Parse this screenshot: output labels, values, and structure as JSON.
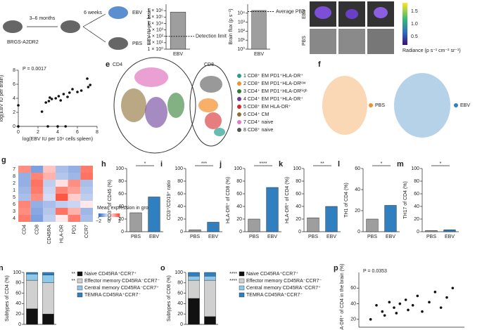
{
  "diagram_a": {
    "mouse": "BRGS-A2DR2",
    "age": "3–6 months",
    "wait": "6 weeks",
    "ebv": "EBV",
    "pbs": "PBS"
  },
  "images_panel": {
    "ebv": "EBV",
    "pbs": "PBS",
    "colorbar_ticks": [
      "1.5",
      "1.0",
      "0.5"
    ],
    "colorbar_title": "Radiance (p s⁻¹ cm⁻² sr⁻¹)"
  },
  "tsne_e": {
    "panel": "e",
    "cd4": "CD4",
    "cd8": "CD8",
    "legend": [
      {
        "name": "1 CD8⁺ EM PD1⁺HLA-DR⁺",
        "color": "#2a9d8f"
      },
      {
        "name": "2 CD8⁺ EM PD1⁺HLA-DRˡᵒʷ",
        "color": "#f28e2b"
      },
      {
        "name": "3 CD4⁺ EM PD1⁺HLA-DRʰⁱᵍʰ",
        "color": "#2e7d32"
      },
      {
        "name": "4 CD4⁺ EM PD1⁺HLA-DR⁺",
        "color": "#6a3d9a"
      },
      {
        "name": "5 CD8⁺ EM HLA-DR⁺",
        "color": "#d62728"
      },
      {
        "name": "6 CD4⁺ CM",
        "color": "#8c6d31"
      },
      {
        "name": "7 CD4⁺ naive",
        "color": "#e377c2"
      },
      {
        "name": "8 CD8⁺ naive",
        "color": "#555555"
      }
    ]
  },
  "tsne_f": {
    "panel": "f",
    "pbs": {
      "name": "PBS",
      "color": "#f28e2b"
    },
    "ebv": {
      "name": "EBV",
      "color": "#2f7fc1"
    }
  },
  "chart_data": [
    {
      "type": "bar",
      "log": true,
      "ylabel": "EBV IU per brain",
      "categories": [
        "EBV"
      ],
      "values": [
        600000
      ],
      "colors": [
        "#9e9e9e"
      ],
      "ylim": [
        1,
        10000000
      ],
      "yticks": [
        {
          "value": 1,
          "label": "1 × 10⁰"
        },
        {
          "value": 10,
          "label": "1 × 10¹"
        },
        {
          "value": 100,
          "label": "1 × 10²"
        },
        {
          "value": 1000,
          "label": "1 × 10³"
        },
        {
          "value": 10000,
          "label": "1 × 10⁴"
        },
        {
          "value": 100000,
          "label": "1 × 10⁵"
        },
        {
          "value": 1000000,
          "label": "1 × 10⁶"
        }
      ],
      "reference": {
        "value": 100,
        "label": "Detection limit"
      }
    },
    {
      "type": "bar",
      "log": true,
      "ylabel": "Brain flux (p s⁻¹)",
      "categories": [
        "EBV"
      ],
      "values": [
        20000
      ],
      "colors": [
        "#9e9e9e"
      ],
      "ylim": [
        1,
        100000
      ],
      "yticks": [
        {
          "value": 1,
          "label": "10⁰"
        },
        {
          "value": 10,
          "label": "10¹"
        },
        {
          "value": 100,
          "label": "10²"
        },
        {
          "value": 1000,
          "label": "10³"
        },
        {
          "value": 10000,
          "label": "10⁴"
        }
      ],
      "reference": {
        "value": 15000,
        "label": "Average PBS"
      }
    },
    {
      "type": "scatter",
      "panel": "d",
      "annotation": "P = 0.0017",
      "xlabel": "log(EBV IU per 10⁶ cells spleen)",
      "ylabel": "log(EBV IU per brain)",
      "x": [
        0,
        0,
        2.4,
        3,
        3.1,
        3.4,
        3.8,
        4,
        4.1,
        4.3,
        4.6,
        5,
        5.2,
        5.5,
        6,
        7,
        7.1,
        7.3,
        3.2,
        4.8,
        2.8,
        6.4
      ],
      "y": [
        3,
        0,
        2.1,
        0,
        3.6,
        3.9,
        4,
        0,
        4.3,
        3.7,
        4.6,
        4.2,
        4.8,
        5.3,
        4.9,
        6.8,
        5.6,
        5.9,
        4.1,
        0,
        3.4,
        5.1
      ],
      "color": "#111",
      "xlim": [
        0,
        8
      ],
      "xticks": [
        0,
        2,
        4,
        6,
        8
      ],
      "ylim": [
        0,
        8
      ],
      "yticks": [
        0,
        2,
        4,
        6,
        8
      ]
    },
    {
      "type": "heatmap",
      "panel": "g",
      "rows": [
        "7",
        "8",
        "2",
        "1",
        "5",
        "6",
        "3",
        "4"
      ],
      "columns": [
        "CD4",
        "CD8",
        "CD45RA",
        "HLA-DR",
        "PD1",
        "CCR7"
      ],
      "values": [
        [
          1.2,
          -1.2,
          0.6,
          -0.8,
          -1,
          1.4
        ],
        [
          -1,
          1.3,
          0.8,
          -0.7,
          -0.9,
          1.5
        ],
        [
          -1,
          1.5,
          -0.6,
          0.3,
          1.2,
          -0.8
        ],
        [
          -0.9,
          1.4,
          -0.5,
          1.3,
          1,
          -0.7
        ],
        [
          -0.8,
          1.2,
          -0.4,
          1.8,
          0.5,
          -0.6
        ],
        [
          1.3,
          -1,
          -0.8,
          -0.6,
          -0.5,
          0.2
        ],
        [
          1.2,
          -1.1,
          -0.7,
          1.5,
          0.8,
          -0.9
        ],
        [
          1.4,
          -1.2,
          -0.6,
          0.2,
          1.4,
          -0.8
        ]
      ],
      "vlim": [
        -2,
        2
      ],
      "colorbar_ticks": [
        {
          "value": -2,
          "label": "−2"
        },
        0,
        2
      ],
      "colorbar_title": "Mean expression in group"
    },
    {
      "type": "bar",
      "panel": "h",
      "ylabel": "CD3⁺ of CD45 (%)",
      "categories": [
        "PBS",
        "EBV"
      ],
      "values": [
        30,
        55
      ],
      "colors": [
        "#9e9e9e",
        "#2f7fc1"
      ],
      "ylim": [
        0,
        100
      ],
      "yticks": [
        0,
        20,
        40,
        60,
        80,
        100
      ],
      "significance": "*"
    },
    {
      "type": "bar",
      "panel": "i",
      "ylabel": "CD3⁺/CD19⁺ ratio",
      "categories": [
        "PBS",
        "EBV"
      ],
      "values": [
        3,
        15
      ],
      "colors": [
        "#9e9e9e",
        "#2f7fc1"
      ],
      "ylim": [
        0,
        100
      ],
      "yticks": [
        0,
        20,
        40,
        60,
        80,
        100
      ],
      "significance": "***"
    },
    {
      "type": "bar",
      "panel": "j",
      "ylabel": "HLA-DR⁺ of CD8 (%)",
      "categories": [
        "PBS",
        "EBV"
      ],
      "values": [
        20,
        70
      ],
      "colors": [
        "#9e9e9e",
        "#2f7fc1"
      ],
      "ylim": [
        0,
        100
      ],
      "yticks": [
        0,
        20,
        40,
        60,
        80,
        100
      ],
      "significance": "****"
    },
    {
      "type": "bar",
      "panel": "k",
      "ylabel": "HLA-DR⁺ of CD4 (%)",
      "categories": [
        "PBS",
        "EBV"
      ],
      "values": [
        22,
        40
      ],
      "colors": [
        "#9e9e9e",
        "#2f7fc1"
      ],
      "ylim": [
        0,
        100
      ],
      "yticks": [
        0,
        20,
        40,
        60,
        80,
        100
      ],
      "significance": "**"
    },
    {
      "type": "bar",
      "panel": "l",
      "ylabel": "TH1 of CD4 (%)",
      "categories": [
        "PBS",
        "EBV"
      ],
      "values": [
        12,
        25
      ],
      "colors": [
        "#9e9e9e",
        "#2f7fc1"
      ],
      "ylim": [
        0,
        60
      ],
      "yticks": [
        0,
        20,
        40,
        60
      ],
      "significance": "*"
    },
    {
      "type": "bar",
      "panel": "m",
      "ylabel": "TH17 of CD4 (%)",
      "categories": [
        "PBS",
        "EBV"
      ],
      "values": [
        2,
        3
      ],
      "colors": [
        "#9e9e9e",
        "#2f7fc1"
      ],
      "ylim": [
        0,
        100
      ],
      "yticks": [
        0,
        20,
        40,
        60,
        80,
        100
      ],
      "significance": "*"
    },
    {
      "type": "stacked_bar",
      "panel": "n",
      "ylabel": "Subtypes of CD4 (%)",
      "categories": [
        null,
        null
      ],
      "ylim": [
        0,
        100
      ],
      "yticks": [
        0,
        20,
        40,
        60,
        80,
        100
      ],
      "markers": [
        "**",
        "**"
      ],
      "series": [
        {
          "name": "Naive CD45RA⁺CCR7⁺",
          "color": "#111111",
          "values": [
            30,
            20
          ]
        },
        {
          "name": "Effector memory CD45RA⁻CCR7⁻",
          "color": "#d0d0d0",
          "values": [
            55,
            60
          ]
        },
        {
          "name": "Central memory CD45RA⁻CCR7⁺",
          "color": "#8ec8ea",
          "values": [
            12,
            15
          ]
        },
        {
          "name": "TEMRA CD45RA⁺CCR7⁻",
          "color": "#2f7fc1",
          "values": [
            3,
            5
          ]
        }
      ]
    },
    {
      "type": "stacked_bar",
      "panel": "o",
      "ylabel": "Subtypes of CD8 (%)",
      "categories": [
        null,
        null
      ],
      "ylim": [
        0,
        100
      ],
      "yticks": [
        0,
        20,
        40,
        60,
        80,
        100
      ],
      "markers": [
        "****",
        "****"
      ],
      "series": [
        {
          "name": "Naive CD45RA⁺CCR7⁺",
          "color": "#111111",
          "values": [
            50,
            15
          ]
        },
        {
          "name": "Effector memory CD45RA⁻CCR7⁻",
          "color": "#d0d0d0",
          "values": [
            35,
            70
          ]
        },
        {
          "name": "Central memory CD45RA⁻CCR7⁺",
          "color": "#8ec8ea",
          "values": [
            8,
            8
          ]
        },
        {
          "name": "TEMRA CD45RA⁺CCR7⁻",
          "color": "#2f7fc1",
          "values": [
            7,
            7
          ]
        }
      ]
    },
    {
      "type": "scatter",
      "panel": "p",
      "annotation": "P = 0.0353",
      "ylabel": "HLA-DR⁺ of CD4 in the brain (%)",
      "x": [
        1,
        1.5,
        2,
        2.2,
        2.6,
        3,
        3.2,
        3.5,
        4,
        4.2,
        4.6,
        5,
        5.4,
        6,
        6.5,
        7,
        7.5,
        8
      ],
      "y": [
        20,
        38,
        30,
        25,
        42,
        35,
        28,
        40,
        45,
        32,
        38,
        50,
        30,
        42,
        55,
        35,
        48,
        60
      ],
      "color": "#111",
      "xlim": [
        0,
        9
      ],
      "ylim": [
        10,
        80
      ],
      "yticks": [
        20,
        40,
        60
      ]
    }
  ]
}
